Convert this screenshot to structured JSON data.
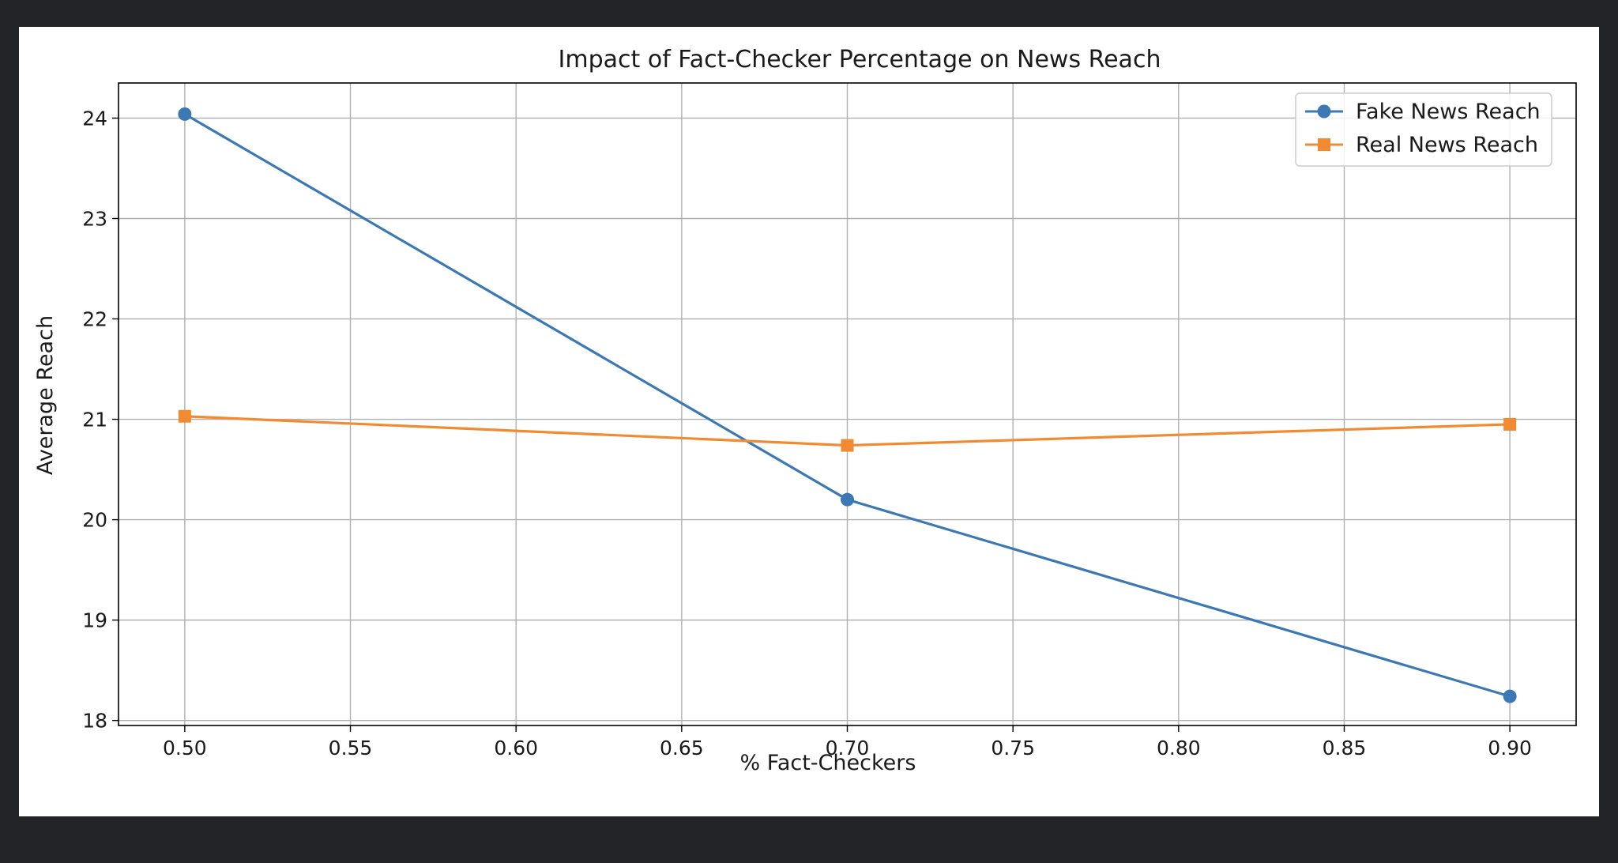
{
  "chart_data": {
    "type": "line",
    "title": "Impact of Fact-Checker Percentage on News Reach",
    "xlabel": "% Fact-Checkers",
    "ylabel": "Average Reach",
    "x": [
      0.5,
      0.7,
      0.9
    ],
    "xlim": [
      0.48,
      0.92
    ],
    "ylim": [
      17.95,
      24.35
    ],
    "xticks": [
      0.5,
      0.55,
      0.6,
      0.65,
      0.7,
      0.75,
      0.8,
      0.85,
      0.9
    ],
    "xtick_labels": [
      "0.50",
      "0.55",
      "0.60",
      "0.65",
      "0.70",
      "0.75",
      "0.80",
      "0.85",
      "0.90"
    ],
    "yticks": [
      18,
      19,
      20,
      21,
      22,
      23,
      24
    ],
    "ytick_labels": [
      "18",
      "19",
      "20",
      "21",
      "22",
      "23",
      "24"
    ],
    "grid": true,
    "legend_position": "top-right",
    "series": [
      {
        "name": "Fake News Reach",
        "values": [
          24.04,
          20.2,
          18.24
        ],
        "color": "#3b78b4",
        "marker": "circle"
      },
      {
        "name": "Real News Reach",
        "values": [
          21.03,
          20.74,
          20.95
        ],
        "color": "#f28a32",
        "marker": "square"
      }
    ]
  }
}
